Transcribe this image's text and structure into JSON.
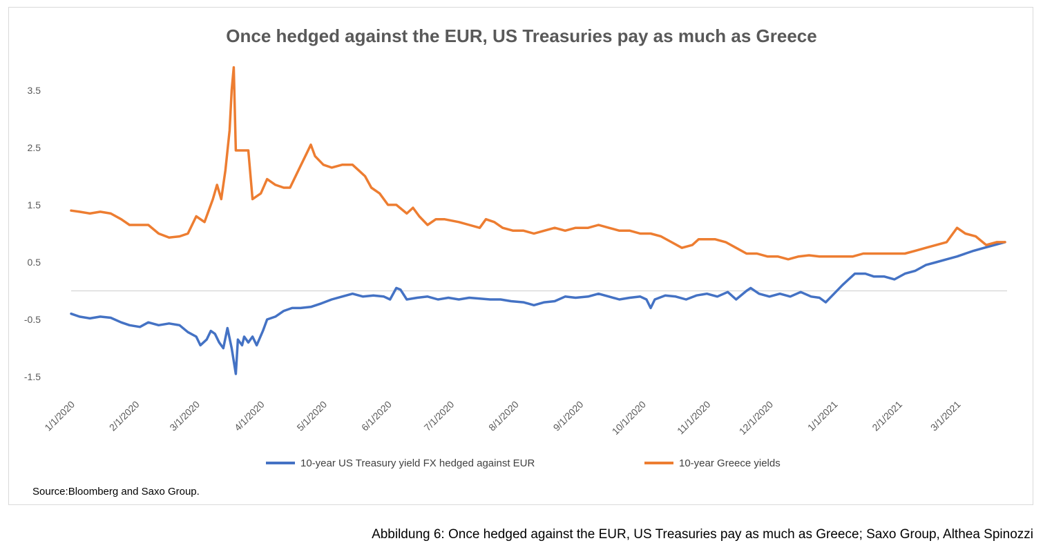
{
  "caption": "Abbildung 6: Once hedged against the EUR, US Treasuries pay as much as Greece; Saxo Group, Althea Spinozzi",
  "source": "Source:Bloomberg and Saxo Group.",
  "colors": {
    "us": "#4472c4",
    "greece": "#ed7d31",
    "zero_line": "#d9d9d9",
    "text": "#595959"
  },
  "chart_data": {
    "type": "line",
    "title": "Once hedged against the EUR, US Treasuries pay as much as Greece",
    "xlabel": "",
    "ylabel": "",
    "ylim": [
      -1.8,
      4.1
    ],
    "xlim": [
      "2020-01-01",
      "2021-03-25"
    ],
    "y_ticks": [
      3.5,
      2.5,
      1.5,
      0.5,
      -0.5,
      -1.5
    ],
    "y_tick_labels": [
      "3.5",
      "2.5",
      "1.5",
      "0.5",
      "-0.5",
      "-1.5"
    ],
    "x_ticks": [
      "2020-01-01",
      "2020-02-01",
      "2020-03-01",
      "2020-04-01",
      "2020-05-01",
      "2020-06-01",
      "2020-07-01",
      "2020-08-01",
      "2020-09-01",
      "2020-10-01",
      "2020-11-01",
      "2020-12-01",
      "2021-01-01",
      "2021-02-01",
      "2021-03-01"
    ],
    "x_tick_labels": [
      "1/1/2020",
      "2/1/2020",
      "3/1/2020",
      "4/1/2020",
      "5/1/2020",
      "6/1/2020",
      "7/1/2020",
      "8/1/2020",
      "9/1/2020",
      "10/1/2020",
      "11/1/2020",
      "12/1/2020",
      "1/1/2021",
      "2/1/2021",
      "3/1/2021"
    ],
    "grid": false,
    "legend_position": "bottom",
    "series": [
      {
        "name": "10-year US Treasury yield FX hedged against EUR",
        "color": "#4472c4",
        "points": [
          [
            "2020-01-01",
            -0.4
          ],
          [
            "2020-01-05",
            -0.45
          ],
          [
            "2020-01-10",
            -0.48
          ],
          [
            "2020-01-15",
            -0.45
          ],
          [
            "2020-01-20",
            -0.47
          ],
          [
            "2020-01-25",
            -0.55
          ],
          [
            "2020-01-29",
            -0.6
          ],
          [
            "2020-02-03",
            -0.63
          ],
          [
            "2020-02-07",
            -0.55
          ],
          [
            "2020-02-12",
            -0.6
          ],
          [
            "2020-02-17",
            -0.57
          ],
          [
            "2020-02-22",
            -0.6
          ],
          [
            "2020-02-26",
            -0.72
          ],
          [
            "2020-03-01",
            -0.8
          ],
          [
            "2020-03-03",
            -0.95
          ],
          [
            "2020-03-06",
            -0.85
          ],
          [
            "2020-03-08",
            -0.7
          ],
          [
            "2020-03-10",
            -0.75
          ],
          [
            "2020-03-12",
            -0.9
          ],
          [
            "2020-03-14",
            -1.0
          ],
          [
            "2020-03-16",
            -0.65
          ],
          [
            "2020-03-18",
            -1.0
          ],
          [
            "2020-03-20",
            -1.45
          ],
          [
            "2020-03-21",
            -0.85
          ],
          [
            "2020-03-23",
            -0.95
          ],
          [
            "2020-03-24",
            -0.8
          ],
          [
            "2020-03-26",
            -0.9
          ],
          [
            "2020-03-28",
            -0.8
          ],
          [
            "2020-03-30",
            -0.95
          ],
          [
            "2020-04-02",
            -0.7
          ],
          [
            "2020-04-04",
            -0.5
          ],
          [
            "2020-04-08",
            -0.45
          ],
          [
            "2020-04-12",
            -0.35
          ],
          [
            "2020-04-16",
            -0.3
          ],
          [
            "2020-04-20",
            -0.3
          ],
          [
            "2020-04-25",
            -0.28
          ],
          [
            "2020-04-30",
            -0.22
          ],
          [
            "2020-05-05",
            -0.15
          ],
          [
            "2020-05-10",
            -0.1
          ],
          [
            "2020-05-15",
            -0.05
          ],
          [
            "2020-05-20",
            -0.1
          ],
          [
            "2020-05-25",
            -0.08
          ],
          [
            "2020-05-30",
            -0.1
          ],
          [
            "2020-06-02",
            -0.15
          ],
          [
            "2020-06-05",
            0.05
          ],
          [
            "2020-06-07",
            0.02
          ],
          [
            "2020-06-10",
            -0.15
          ],
          [
            "2020-06-15",
            -0.12
          ],
          [
            "2020-06-20",
            -0.1
          ],
          [
            "2020-06-25",
            -0.15
          ],
          [
            "2020-06-30",
            -0.12
          ],
          [
            "2020-07-05",
            -0.15
          ],
          [
            "2020-07-10",
            -0.12
          ],
          [
            "2020-07-20",
            -0.15
          ],
          [
            "2020-07-25",
            -0.15
          ],
          [
            "2020-07-30",
            -0.18
          ],
          [
            "2020-08-05",
            -0.2
          ],
          [
            "2020-08-10",
            -0.25
          ],
          [
            "2020-08-15",
            -0.2
          ],
          [
            "2020-08-20",
            -0.18
          ],
          [
            "2020-08-25",
            -0.1
          ],
          [
            "2020-08-30",
            -0.12
          ],
          [
            "2020-09-05",
            -0.1
          ],
          [
            "2020-09-10",
            -0.05
          ],
          [
            "2020-09-15",
            -0.1
          ],
          [
            "2020-09-20",
            -0.15
          ],
          [
            "2020-09-25",
            -0.12
          ],
          [
            "2020-09-30",
            -0.1
          ],
          [
            "2020-10-03",
            -0.15
          ],
          [
            "2020-10-05",
            -0.3
          ],
          [
            "2020-10-07",
            -0.15
          ],
          [
            "2020-10-12",
            -0.08
          ],
          [
            "2020-10-17",
            -0.1
          ],
          [
            "2020-10-22",
            -0.15
          ],
          [
            "2020-10-27",
            -0.08
          ],
          [
            "2020-11-01",
            -0.05
          ],
          [
            "2020-11-06",
            -0.1
          ],
          [
            "2020-11-11",
            -0.02
          ],
          [
            "2020-11-15",
            -0.15
          ],
          [
            "2020-11-20",
            0.0
          ],
          [
            "2020-11-22",
            0.05
          ],
          [
            "2020-11-26",
            -0.05
          ],
          [
            "2020-12-01",
            -0.1
          ],
          [
            "2020-12-06",
            -0.05
          ],
          [
            "2020-12-11",
            -0.1
          ],
          [
            "2020-12-16",
            -0.02
          ],
          [
            "2020-12-21",
            -0.1
          ],
          [
            "2020-12-25",
            -0.12
          ],
          [
            "2020-12-28",
            -0.2
          ],
          [
            "2021-01-01",
            -0.05
          ],
          [
            "2021-01-05",
            0.1
          ],
          [
            "2021-01-08",
            0.2
          ],
          [
            "2021-01-11",
            0.3
          ],
          [
            "2021-01-16",
            0.3
          ],
          [
            "2021-01-20",
            0.25
          ],
          [
            "2021-01-25",
            0.25
          ],
          [
            "2021-01-30",
            0.2
          ],
          [
            "2021-02-04",
            0.3
          ],
          [
            "2021-02-09",
            0.35
          ],
          [
            "2021-02-14",
            0.45
          ],
          [
            "2021-02-19",
            0.5
          ],
          [
            "2021-02-24",
            0.55
          ],
          [
            "2021-03-01",
            0.6
          ],
          [
            "2021-03-05",
            0.65
          ],
          [
            "2021-03-09",
            0.7
          ],
          [
            "2021-03-14",
            0.75
          ],
          [
            "2021-03-19",
            0.8
          ],
          [
            "2021-03-24",
            0.85
          ]
        ]
      },
      {
        "name": "10-year Greece yields",
        "color": "#ed7d31",
        "points": [
          [
            "2020-01-01",
            1.4
          ],
          [
            "2020-01-05",
            1.38
          ],
          [
            "2020-01-10",
            1.35
          ],
          [
            "2020-01-15",
            1.38
          ],
          [
            "2020-01-20",
            1.35
          ],
          [
            "2020-01-25",
            1.25
          ],
          [
            "2020-01-29",
            1.15
          ],
          [
            "2020-02-03",
            1.15
          ],
          [
            "2020-02-07",
            1.15
          ],
          [
            "2020-02-12",
            1.0
          ],
          [
            "2020-02-17",
            0.93
          ],
          [
            "2020-02-22",
            0.95
          ],
          [
            "2020-02-26",
            1.0
          ],
          [
            "2020-03-01",
            1.3
          ],
          [
            "2020-03-05",
            1.2
          ],
          [
            "2020-03-09",
            1.6
          ],
          [
            "2020-03-11",
            1.85
          ],
          [
            "2020-03-13",
            1.6
          ],
          [
            "2020-03-15",
            2.1
          ],
          [
            "2020-03-17",
            2.8
          ],
          [
            "2020-03-18",
            3.5
          ],
          [
            "2020-03-19",
            3.9
          ],
          [
            "2020-03-20",
            2.45
          ],
          [
            "2020-03-23",
            2.45
          ],
          [
            "2020-03-26",
            2.45
          ],
          [
            "2020-03-28",
            1.6
          ],
          [
            "2020-04-01",
            1.7
          ],
          [
            "2020-04-04",
            1.95
          ],
          [
            "2020-04-08",
            1.85
          ],
          [
            "2020-04-12",
            1.8
          ],
          [
            "2020-04-15",
            1.8
          ],
          [
            "2020-04-19",
            2.1
          ],
          [
            "2020-04-23",
            2.4
          ],
          [
            "2020-04-25",
            2.55
          ],
          [
            "2020-04-27",
            2.35
          ],
          [
            "2020-05-01",
            2.2
          ],
          [
            "2020-05-05",
            2.15
          ],
          [
            "2020-05-10",
            2.2
          ],
          [
            "2020-05-15",
            2.2
          ],
          [
            "2020-05-18",
            2.1
          ],
          [
            "2020-05-21",
            2.0
          ],
          [
            "2020-05-24",
            1.8
          ],
          [
            "2020-05-28",
            1.7
          ],
          [
            "2020-06-01",
            1.5
          ],
          [
            "2020-06-05",
            1.5
          ],
          [
            "2020-06-10",
            1.35
          ],
          [
            "2020-06-13",
            1.45
          ],
          [
            "2020-06-16",
            1.3
          ],
          [
            "2020-06-20",
            1.15
          ],
          [
            "2020-06-24",
            1.25
          ],
          [
            "2020-06-28",
            1.25
          ],
          [
            "2020-07-05",
            1.2
          ],
          [
            "2020-07-10",
            1.15
          ],
          [
            "2020-07-15",
            1.1
          ],
          [
            "2020-07-18",
            1.25
          ],
          [
            "2020-07-22",
            1.2
          ],
          [
            "2020-07-26",
            1.1
          ],
          [
            "2020-07-31",
            1.05
          ],
          [
            "2020-08-05",
            1.05
          ],
          [
            "2020-08-10",
            1.0
          ],
          [
            "2020-08-15",
            1.05
          ],
          [
            "2020-08-20",
            1.1
          ],
          [
            "2020-08-25",
            1.05
          ],
          [
            "2020-08-30",
            1.1
          ],
          [
            "2020-09-05",
            1.1
          ],
          [
            "2020-09-10",
            1.15
          ],
          [
            "2020-09-15",
            1.1
          ],
          [
            "2020-09-20",
            1.05
          ],
          [
            "2020-09-25",
            1.05
          ],
          [
            "2020-09-30",
            1.0
          ],
          [
            "2020-10-05",
            1.0
          ],
          [
            "2020-10-10",
            0.95
          ],
          [
            "2020-10-15",
            0.85
          ],
          [
            "2020-10-20",
            0.75
          ],
          [
            "2020-10-25",
            0.8
          ],
          [
            "2020-10-28",
            0.9
          ],
          [
            "2020-11-05",
            0.9
          ],
          [
            "2020-11-10",
            0.85
          ],
          [
            "2020-11-15",
            0.75
          ],
          [
            "2020-11-20",
            0.65
          ],
          [
            "2020-11-25",
            0.65
          ],
          [
            "2020-11-30",
            0.6
          ],
          [
            "2020-12-05",
            0.6
          ],
          [
            "2020-12-10",
            0.55
          ],
          [
            "2020-12-15",
            0.6
          ],
          [
            "2020-12-20",
            0.62
          ],
          [
            "2020-12-25",
            0.6
          ],
          [
            "2020-12-30",
            0.6
          ],
          [
            "2021-01-05",
            0.6
          ],
          [
            "2021-01-10",
            0.6
          ],
          [
            "2021-01-15",
            0.65
          ],
          [
            "2021-01-20",
            0.65
          ],
          [
            "2021-01-25",
            0.65
          ],
          [
            "2021-01-30",
            0.65
          ],
          [
            "2021-02-04",
            0.65
          ],
          [
            "2021-02-09",
            0.7
          ],
          [
            "2021-02-14",
            0.75
          ],
          [
            "2021-02-19",
            0.8
          ],
          [
            "2021-02-24",
            0.85
          ],
          [
            "2021-03-01",
            1.1
          ],
          [
            "2021-03-05",
            1.0
          ],
          [
            "2021-03-10",
            0.95
          ],
          [
            "2021-03-15",
            0.8
          ],
          [
            "2021-03-20",
            0.85
          ],
          [
            "2021-03-24",
            0.85
          ]
        ]
      }
    ]
  }
}
